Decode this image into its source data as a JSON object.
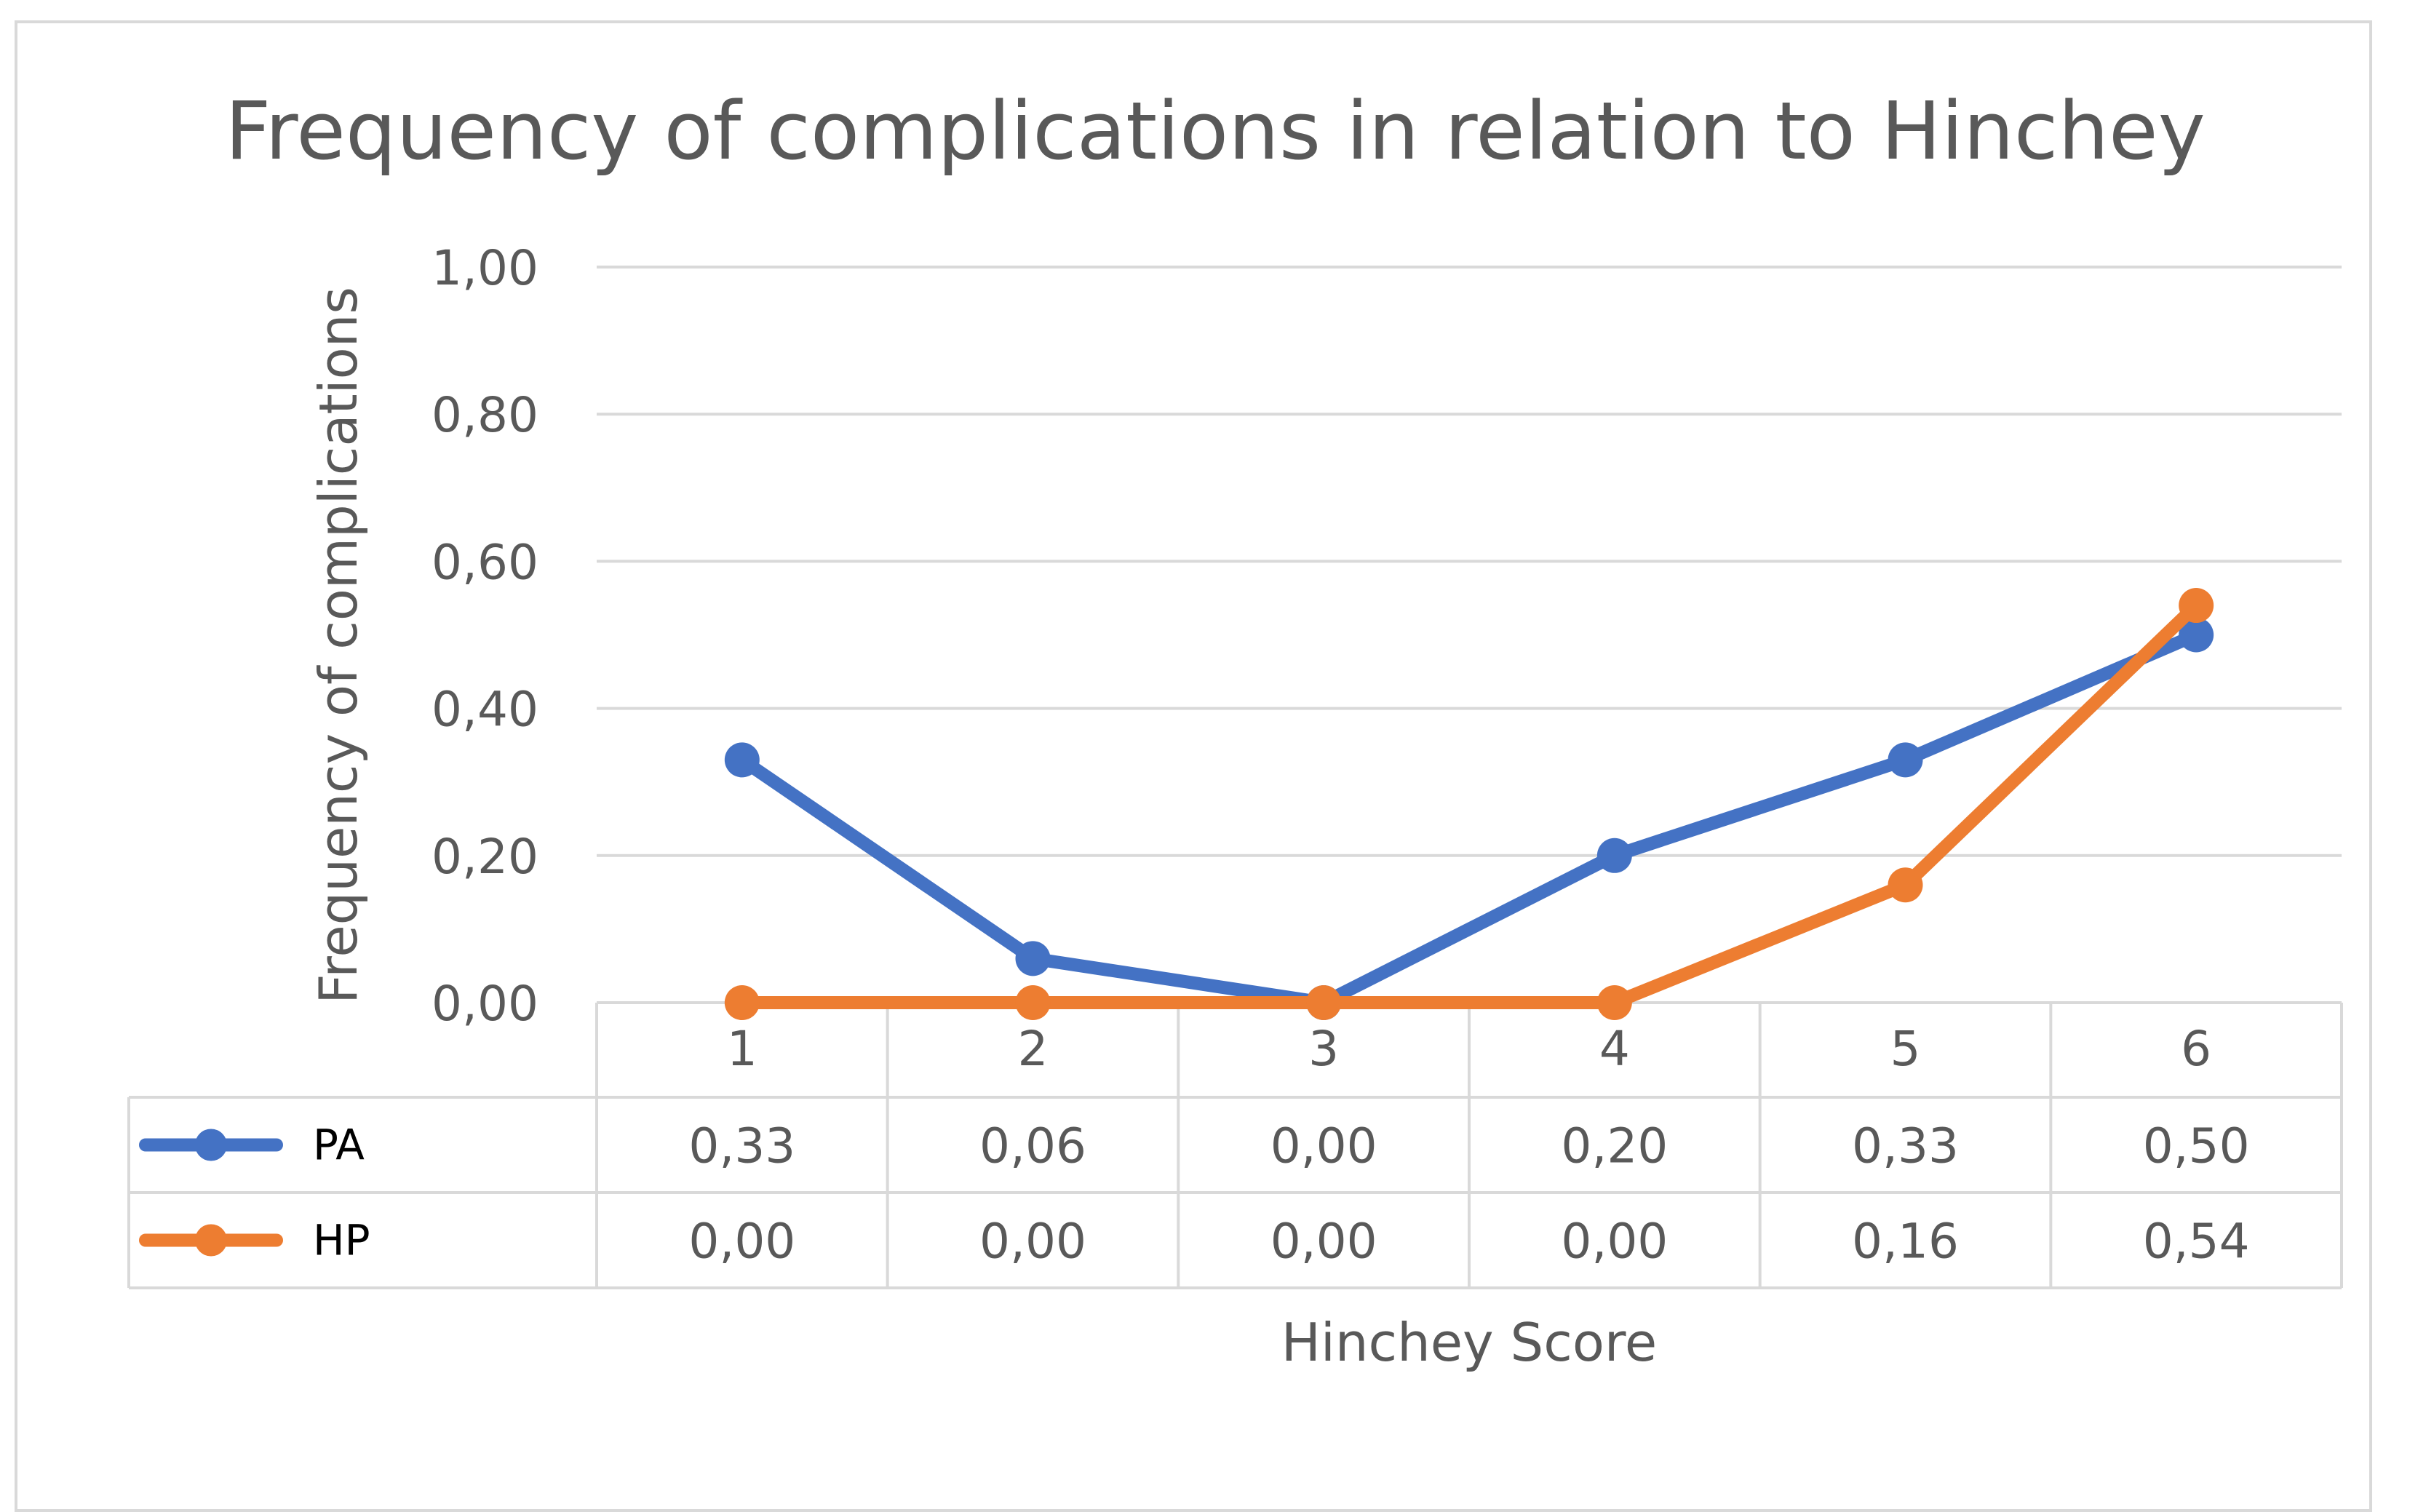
{
  "chart_data": {
    "type": "line",
    "title": "Frequency of complications in relation to Hinchey",
    "xlabel": "Hinchey Score",
    "ylabel": "Frequency of complications",
    "ylim": [
      0,
      1
    ],
    "yticks": [
      "0,00",
      "0,20",
      "0,40",
      "0,60",
      "0,80",
      "1,00"
    ],
    "categories": [
      "1",
      "2",
      "3",
      "4",
      "5",
      "6"
    ],
    "grid": true,
    "legend": "data-table",
    "series": [
      {
        "name": "PA",
        "color": "#4472C4",
        "values": [
          0.33,
          0.06,
          0.0,
          0.2,
          0.33,
          0.5
        ],
        "labels": [
          "0,33",
          "0,06",
          "0,00",
          "0,20",
          "0,33",
          "0,50"
        ]
      },
      {
        "name": "HP",
        "color": "#ED7D31",
        "values": [
          0.0,
          0.0,
          0.0,
          0.0,
          0.16,
          0.54
        ],
        "labels": [
          "0,00",
          "0,00",
          "0,00",
          "0,00",
          "0,16",
          "0,54"
        ]
      }
    ]
  }
}
